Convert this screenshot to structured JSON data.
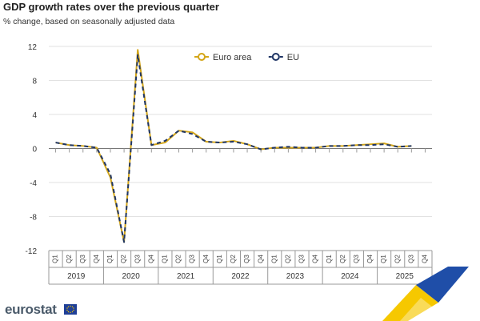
{
  "header": {
    "title": "GDP growth rates over the previous quarter",
    "subtitle": "% change, based on seasonally adjusted data"
  },
  "branding": {
    "logo_text": "eurostat"
  },
  "colors": {
    "euro_area": "#d4a619",
    "eu": "#1f3565",
    "grid": "#e2e2e2",
    "axis": "#999999",
    "zero_line": "#777777",
    "deco_yellow": "#f6c800",
    "deco_blue": "#1f4ea8"
  },
  "chart_data": {
    "type": "line",
    "title": "GDP growth rates over the previous quarter",
    "subtitle": "% change, based on seasonally adjusted data",
    "xlabel": "",
    "ylabel": "",
    "ylim": [
      -12,
      12
    ],
    "yticks": [
      12,
      8,
      4,
      0,
      -4,
      -8,
      -12
    ],
    "grid": true,
    "legend_position": "top-center",
    "quarter_labels": [
      "Q1",
      "Q2",
      "Q3",
      "Q4",
      "Q1",
      "Q2",
      "Q3",
      "Q4",
      "Q1",
      "Q2",
      "Q3",
      "Q4",
      "Q1",
      "Q2",
      "Q3",
      "Q4",
      "Q1",
      "Q2",
      "Q3",
      "Q4",
      "Q1",
      "Q2",
      "Q3",
      "Q4",
      "Q1",
      "Q2",
      "Q3",
      "Q4"
    ],
    "years": [
      "2019",
      "2020",
      "2021",
      "2022",
      "2023",
      "2024",
      "2025"
    ],
    "series": [
      {
        "name": "Euro area",
        "color": "#d4a619",
        "values": [
          0.7,
          0.4,
          0.3,
          0.1,
          -3.4,
          -11.0,
          11.6,
          0.4,
          0.7,
          2.1,
          1.9,
          0.8,
          0.7,
          0.9,
          0.5,
          -0.1,
          0.1,
          0.1,
          0.1,
          0.1,
          0.3,
          0.3,
          0.4,
          0.5,
          0.6,
          0.2,
          0.3,
          null
        ]
      },
      {
        "name": "EU",
        "color": "#1f3565",
        "values": [
          0.7,
          0.4,
          0.3,
          0.1,
          -3.0,
          -11.0,
          11.0,
          0.4,
          0.9,
          2.1,
          1.7,
          0.8,
          0.7,
          0.8,
          0.5,
          -0.1,
          0.1,
          0.2,
          0.1,
          0.1,
          0.3,
          0.3,
          0.4,
          0.4,
          0.5,
          0.2,
          0.3,
          null
        ]
      }
    ]
  }
}
